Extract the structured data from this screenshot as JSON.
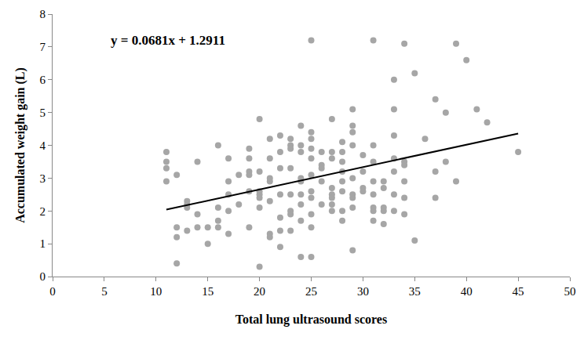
{
  "chart_data": {
    "type": "scatter",
    "x_label": "Total lung ultrasound scores",
    "y_label": "Accumulated weight gain (L)",
    "annotations": [
      "y = 0.0681x + 1.2911"
    ],
    "xlim": [
      0,
      50
    ],
    "xticks": [
      0,
      5,
      10,
      15,
      20,
      25,
      30,
      35,
      40,
      45,
      50
    ],
    "ylim": [
      0,
      8
    ],
    "yticks": [
      0,
      1,
      2,
      3,
      4,
      5,
      6,
      7,
      8
    ],
    "grid": false,
    "series": [
      {
        "type": "scatter",
        "color": "#a6a6a6",
        "marker": "circle",
        "x": [
          11,
          11,
          11,
          11,
          12,
          12,
          12,
          12,
          13,
          13,
          13,
          13,
          14,
          14,
          14,
          15,
          15,
          16,
          16,
          16,
          16,
          17,
          17,
          17,
          17,
          17,
          18,
          18,
          19,
          19,
          19,
          19,
          19,
          19,
          20,
          20,
          20,
          20,
          20,
          20,
          20,
          21,
          21,
          21,
          21,
          21,
          21,
          21,
          22,
          22,
          22,
          22,
          22,
          22,
          22,
          23,
          23,
          23,
          23,
          23,
          23,
          23,
          23,
          24,
          24,
          24,
          24,
          24,
          24,
          24,
          24,
          24,
          25,
          25,
          25,
          25,
          25,
          25,
          25,
          25,
          25,
          25,
          25,
          26,
          26,
          26,
          26,
          26,
          27,
          27,
          27,
          27,
          27,
          27,
          27,
          27,
          28,
          28,
          28,
          28,
          28,
          28,
          28,
          28,
          29,
          29,
          29,
          29,
          29,
          29,
          29,
          29,
          29,
          30,
          30,
          30,
          30,
          31,
          31,
          31,
          31,
          31,
          31,
          31,
          31,
          32,
          32,
          32,
          32,
          32,
          33,
          33,
          33,
          33,
          33,
          33,
          33,
          34,
          34,
          34,
          34,
          34,
          34,
          35,
          35,
          36,
          37,
          37,
          37,
          38,
          38,
          39,
          39,
          40,
          41,
          42,
          45
        ],
        "values": [
          3.8,
          3.5,
          3.3,
          2.9,
          3.1,
          1.5,
          1.2,
          0.4,
          2.3,
          2.2,
          2.1,
          1.4,
          3.5,
          1.9,
          1.5,
          1.5,
          1.0,
          4.0,
          2.1,
          1.7,
          1.5,
          3.6,
          2.9,
          2.5,
          2.0,
          1.3,
          3.1,
          2.2,
          3.9,
          3.6,
          3.2,
          3.1,
          2.6,
          1.5,
          4.8,
          3.2,
          2.6,
          2.5,
          2.4,
          2.1,
          0.3,
          4.2,
          3.6,
          3.0,
          2.9,
          2.3,
          1.3,
          1.2,
          4.3,
          3.8,
          3.3,
          2.5,
          1.8,
          1.4,
          0.9,
          4.2,
          4.0,
          3.9,
          3.3,
          2.5,
          2.0,
          1.9,
          1.4,
          4.6,
          4.0,
          3.8,
          3.0,
          2.9,
          2.5,
          2.2,
          1.7,
          0.6,
          7.2,
          4.4,
          4.2,
          3.9,
          3.6,
          3.1,
          2.6,
          2.4,
          1.9,
          1.5,
          0.6,
          3.8,
          3.4,
          3.3,
          2.9,
          2.2,
          4.8,
          3.8,
          3.6,
          2.7,
          2.5,
          2.4,
          2.2,
          2.0,
          4.1,
          3.8,
          3.5,
          3.2,
          2.9,
          2.6,
          2.0,
          1.7,
          5.1,
          4.6,
          4.4,
          4.0,
          3.0,
          2.5,
          2.4,
          2.1,
          0.8,
          3.7,
          3.2,
          2.7,
          2.6,
          7.2,
          4.0,
          3.5,
          2.9,
          2.5,
          2.1,
          2.0,
          1.7,
          2.9,
          2.7,
          2.1,
          2.0,
          1.6,
          6.0,
          5.1,
          4.3,
          3.6,
          3.2,
          2.5,
          2.0,
          7.1,
          3.5,
          3.4,
          2.9,
          2.4,
          1.9,
          6.2,
          1.1,
          4.2,
          5.4,
          3.2,
          2.4,
          5.0,
          3.5,
          7.1,
          2.9,
          6.6,
          5.1,
          4.7,
          3.8
        ]
      },
      {
        "type": "line",
        "color": "#000000",
        "line_style": "solid",
        "x": [
          11,
          45
        ],
        "values": [
          2.04,
          4.36
        ]
      }
    ]
  }
}
